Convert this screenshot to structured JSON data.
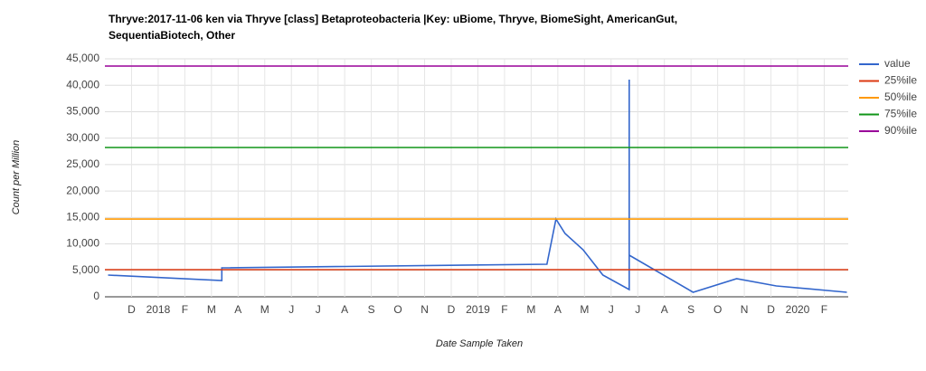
{
  "chart_data": {
    "type": "line",
    "title": [
      "Thryve:2017-11-06 ken via Thryve [class] Betaproteobacteria |Key: uBiome, Thryve, BiomeSight, AmericanGut,",
      "SequentiaBiotech, Other"
    ],
    "x_label": "Date Sample Taken",
    "y_label": "Count per Million",
    "xlim": [
      -1,
      26.9
    ],
    "ylim": [
      0,
      45000
    ],
    "xticks": [
      {
        "value": 0,
        "label": "D"
      },
      {
        "value": 1,
        "label": "2018"
      },
      {
        "value": 2,
        "label": "F"
      },
      {
        "value": 3,
        "label": "M"
      },
      {
        "value": 4,
        "label": "A"
      },
      {
        "value": 5,
        "label": "M"
      },
      {
        "value": 6,
        "label": "J"
      },
      {
        "value": 7,
        "label": "J"
      },
      {
        "value": 8,
        "label": "A"
      },
      {
        "value": 9,
        "label": "S"
      },
      {
        "value": 10,
        "label": "O"
      },
      {
        "value": 11,
        "label": "N"
      },
      {
        "value": 12,
        "label": "D"
      },
      {
        "value": 13,
        "label": "2019"
      },
      {
        "value": 14,
        "label": "F"
      },
      {
        "value": 15,
        "label": "M"
      },
      {
        "value": 16,
        "label": "A"
      },
      {
        "value": 17,
        "label": "M"
      },
      {
        "value": 18,
        "label": "J"
      },
      {
        "value": 19,
        "label": "J"
      },
      {
        "value": 20,
        "label": "A"
      },
      {
        "value": 21,
        "label": "S"
      },
      {
        "value": 22,
        "label": "O"
      },
      {
        "value": 23,
        "label": "N"
      },
      {
        "value": 24,
        "label": "D"
      },
      {
        "value": 25,
        "label": "2020"
      },
      {
        "value": 26,
        "label": "F"
      }
    ],
    "yticks": [
      0,
      {
        "value": 5000,
        "label": "5,000"
      },
      {
        "value": 10000,
        "label": "10,000"
      },
      {
        "value": 15000,
        "label": "15,000"
      },
      {
        "value": 20000,
        "label": "20,000"
      },
      {
        "value": 25000,
        "label": "25,000"
      },
      {
        "value": 30000,
        "label": "30,000"
      },
      {
        "value": 35000,
        "label": "35,000"
      },
      {
        "value": 40000,
        "label": "40,000"
      },
      {
        "value": 45000,
        "label": "45,000"
      }
    ],
    "grid": true,
    "legend": "right",
    "series": [
      {
        "name": "value",
        "color": "#3366cc",
        "x": [
          -0.88,
          3.39,
          3.39,
          15.59,
          15.93,
          16.27,
          16.95,
          17.69,
          18.68,
          18.68,
          18.68,
          21.08,
          22.71,
          24.2,
          26.85
        ],
        "values": [
          4100,
          3080,
          5480,
          6160,
          14700,
          11980,
          8900,
          4100,
          1370,
          41060,
          7870,
          850,
          3420,
          2050,
          850
        ]
      },
      {
        "name": "25%ile",
        "color": "#dc3912",
        "x": [
          -1,
          26.9
        ],
        "values": [
          5130,
          5130
        ]
      },
      {
        "name": "50%ile",
        "color": "#ff9900",
        "x": [
          -1,
          26.9
        ],
        "values": [
          14700,
          14700
        ]
      },
      {
        "name": "75%ile",
        "color": "#109618",
        "x": [
          -1,
          26.9
        ],
        "values": [
          28230,
          28230
        ]
      },
      {
        "name": "90%ile",
        "color": "#990099",
        "x": [
          -1,
          26.9
        ],
        "values": [
          43630,
          43630
        ]
      }
    ]
  }
}
